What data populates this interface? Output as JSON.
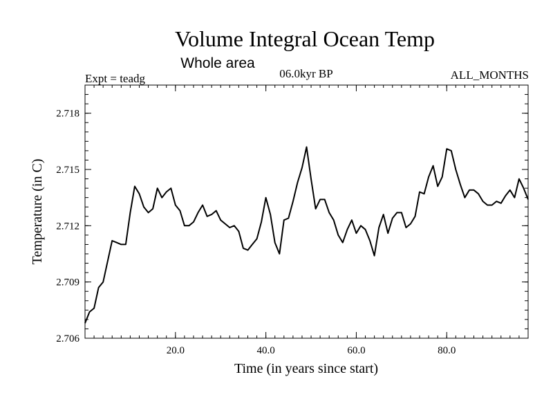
{
  "chart_data": {
    "type": "line",
    "title": "Volume Integral Ocean Temp",
    "subtitle": "Whole area",
    "expt_label": "Expt = teadg",
    "period_label": "06.0kyr BP",
    "months_label": "ALL_MONTHS",
    "xlabel": "Time (in years since start)",
    "ylabel": "Temperature (in C)",
    "xlim": [
      0,
      98
    ],
    "ylim": [
      2.706,
      2.7195
    ],
    "xticks": [
      20,
      40,
      60,
      80
    ],
    "xtick_labels": [
      "20.0",
      "40.0",
      "60.0",
      "80.0"
    ],
    "yticks": [
      2.706,
      2.709,
      2.712,
      2.715,
      2.718
    ],
    "ytick_labels": [
      "2.706",
      "2.709",
      "2.712",
      "2.715",
      "2.718"
    ],
    "x_minor_step": 2,
    "y_minor_step": 0.0005,
    "grid": false,
    "series": [
      {
        "name": "Temperature",
        "color": "#000000",
        "x": [
          0,
          1,
          2,
          3,
          4,
          5,
          6,
          7,
          8,
          9,
          10,
          11,
          12,
          13,
          14,
          15,
          16,
          17,
          18,
          19,
          20,
          21,
          22,
          23,
          24,
          25,
          26,
          27,
          28,
          29,
          30,
          31,
          32,
          33,
          34,
          35,
          36,
          37,
          38,
          39,
          40,
          41,
          42,
          43,
          44,
          45,
          46,
          47,
          48,
          49,
          50,
          51,
          52,
          53,
          54,
          55,
          56,
          57,
          58,
          59,
          60,
          61,
          62,
          63,
          64,
          65,
          66,
          67,
          68,
          69,
          70,
          71,
          72,
          73,
          74,
          75,
          76,
          77,
          78,
          79,
          80,
          81,
          82,
          83,
          84,
          85,
          86,
          87,
          88,
          89,
          90,
          91,
          92,
          93,
          94,
          95,
          96,
          97,
          98
        ],
        "values": [
          2.7068,
          2.7074,
          2.7076,
          2.7087,
          2.709,
          2.7101,
          2.7112,
          2.7111,
          2.711,
          2.711,
          2.7127,
          2.7141,
          2.7137,
          2.713,
          2.7127,
          2.7129,
          2.714,
          2.7135,
          2.7138,
          2.714,
          2.7131,
          2.7128,
          2.712,
          2.712,
          2.7122,
          2.7127,
          2.7131,
          2.7125,
          2.7126,
          2.7128,
          2.7123,
          2.7121,
          2.7119,
          2.712,
          2.7117,
          2.7108,
          2.7107,
          2.711,
          2.7113,
          2.7122,
          2.7135,
          2.7126,
          2.7111,
          2.7105,
          2.7123,
          2.7124,
          2.7133,
          2.7143,
          2.7151,
          2.7162,
          2.7145,
          2.7129,
          2.7134,
          2.7134,
          2.7127,
          2.7123,
          2.7115,
          2.7111,
          2.7118,
          2.7123,
          2.7116,
          2.712,
          2.7118,
          2.7112,
          2.7104,
          2.7119,
          2.7126,
          2.7116,
          2.7124,
          2.7127,
          2.7127,
          2.7119,
          2.7121,
          2.7125,
          2.7138,
          2.7137,
          2.7146,
          2.7152,
          2.7141,
          2.7146,
          2.7161,
          2.716,
          2.715,
          2.7142,
          2.7135,
          2.7139,
          2.7139,
          2.7137,
          2.7133,
          2.7131,
          2.7131,
          2.7133,
          2.7132,
          2.7136,
          2.7139,
          2.7135,
          2.7145,
          2.714,
          2.7134
        ]
      }
    ]
  }
}
